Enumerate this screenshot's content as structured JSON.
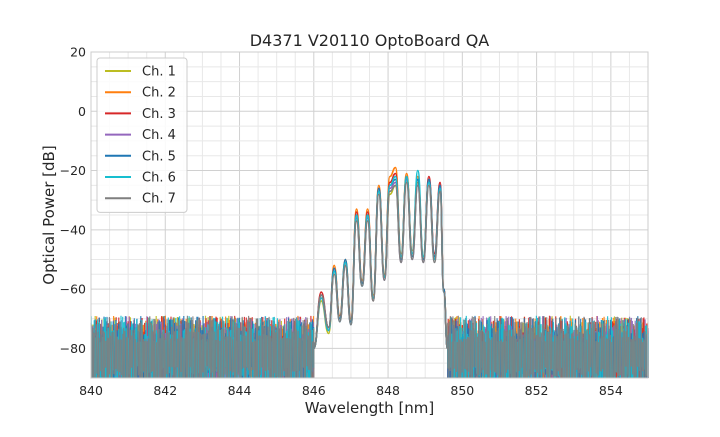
{
  "chart_data": {
    "type": "line",
    "title": "D4371 V20110 OptoBoard QA",
    "xlabel": "Wavelength [nm]",
    "ylabel": "Optical Power [dB]",
    "xlim": [
      840,
      855
    ],
    "ylim": [
      -90,
      20
    ],
    "xticks": [
      840,
      842,
      844,
      846,
      848,
      850,
      852,
      854
    ],
    "yticks": [
      20,
      0,
      -20,
      -40,
      -60,
      -80
    ],
    "ytick_labels": [
      "20",
      "0",
      "−20",
      "−40",
      "−60",
      "−80"
    ],
    "grid": true,
    "legend_position": "top-left",
    "noise_floor_db": -82,
    "series": [
      {
        "name": "Ch. 1",
        "color": "#bcbd22",
        "x": [
          846.0,
          846.2,
          846.4,
          846.55,
          846.7,
          846.85,
          847.0,
          847.15,
          847.3,
          847.45,
          847.6,
          847.75,
          847.9,
          848.05,
          848.2,
          848.35,
          848.5,
          848.65,
          848.8,
          848.95,
          849.1,
          849.25,
          849.4,
          849.5,
          849.6
        ],
        "y": [
          -80,
          -64,
          -75,
          -54,
          -70,
          -52,
          -71,
          -36,
          -58,
          -35,
          -64,
          -27,
          -56,
          -28,
          -25,
          -50,
          -23,
          -49,
          -24,
          -50,
          -23,
          -50,
          -26,
          -60,
          -80
        ]
      },
      {
        "name": "Ch. 2",
        "color": "#ff7f0e",
        "x": [
          846.0,
          846.2,
          846.4,
          846.55,
          846.7,
          846.85,
          847.0,
          847.15,
          847.3,
          847.45,
          847.6,
          847.75,
          847.9,
          848.05,
          848.2,
          848.35,
          848.5,
          848.65,
          848.8,
          848.95,
          849.1,
          849.25,
          849.4,
          849.5,
          849.6
        ],
        "y": [
          -80,
          -62,
          -74,
          -52,
          -69,
          -50,
          -70,
          -33,
          -57,
          -33,
          -62,
          -25,
          -55,
          -22,
          -19,
          -48,
          -21,
          -47,
          -22,
          -49,
          -23,
          -49,
          -25,
          -60,
          -80
        ]
      },
      {
        "name": "Ch. 3",
        "color": "#d62728",
        "x": [
          846.0,
          846.2,
          846.4,
          846.55,
          846.7,
          846.85,
          847.0,
          847.15,
          847.3,
          847.45,
          847.6,
          847.75,
          847.9,
          848.05,
          848.2,
          848.35,
          848.5,
          848.65,
          848.8,
          848.95,
          849.1,
          849.25,
          849.4,
          849.5,
          849.6
        ],
        "y": [
          -80,
          -61,
          -73,
          -53,
          -70,
          -51,
          -71,
          -34,
          -58,
          -34,
          -63,
          -26,
          -56,
          -24,
          -21,
          -49,
          -22,
          -48,
          -23,
          -50,
          -22,
          -48,
          -24,
          -60,
          -80
        ]
      },
      {
        "name": "Ch. 4",
        "color": "#9467bd",
        "x": [
          846.0,
          846.2,
          846.4,
          846.55,
          846.7,
          846.85,
          847.0,
          847.15,
          847.3,
          847.45,
          847.6,
          847.75,
          847.9,
          848.05,
          848.2,
          848.35,
          848.5,
          848.65,
          848.8,
          848.95,
          849.1,
          849.25,
          849.4,
          849.5,
          849.6
        ],
        "y": [
          -80,
          -63,
          -74,
          -54,
          -71,
          -52,
          -72,
          -36,
          -59,
          -36,
          -64,
          -27,
          -57,
          -26,
          -24,
          -51,
          -23,
          -50,
          -25,
          -51,
          -24,
          -50,
          -26,
          -61,
          -80
        ]
      },
      {
        "name": "Ch. 5",
        "color": "#1f77b4",
        "x": [
          846.0,
          846.2,
          846.4,
          846.55,
          846.7,
          846.85,
          847.0,
          847.15,
          847.3,
          847.45,
          847.6,
          847.75,
          847.9,
          848.05,
          848.2,
          848.35,
          848.5,
          848.65,
          848.8,
          848.95,
          849.1,
          849.25,
          849.4,
          849.5,
          849.6
        ],
        "y": [
          -80,
          -62,
          -73,
          -53,
          -70,
          -50,
          -71,
          -35,
          -58,
          -35,
          -63,
          -26,
          -56,
          -25,
          -23,
          -50,
          -22,
          -49,
          -23,
          -50,
          -23,
          -49,
          -25,
          -60,
          -80
        ]
      },
      {
        "name": "Ch. 6",
        "color": "#17becf",
        "x": [
          846.0,
          846.2,
          846.4,
          846.55,
          846.7,
          846.85,
          847.0,
          847.15,
          847.3,
          847.45,
          847.6,
          847.75,
          847.9,
          848.05,
          848.2,
          848.35,
          848.5,
          848.65,
          848.8,
          848.95,
          849.1,
          849.25,
          849.4,
          849.5,
          849.6
        ],
        "y": [
          -80,
          -63,
          -74,
          -54,
          -71,
          -51,
          -72,
          -35,
          -59,
          -35,
          -63,
          -27,
          -56,
          -25,
          -22,
          -49,
          -22,
          -48,
          -20,
          -49,
          -24,
          -50,
          -26,
          -61,
          -80
        ]
      },
      {
        "name": "Ch. 7",
        "color": "#7f7f7f",
        "x": [
          846.0,
          846.2,
          846.4,
          846.55,
          846.7,
          846.85,
          847.0,
          847.15,
          847.3,
          847.45,
          847.6,
          847.75,
          847.9,
          848.05,
          848.2,
          848.35,
          848.5,
          848.65,
          848.8,
          848.95,
          849.1,
          849.25,
          849.4,
          849.5,
          849.6
        ],
        "y": [
          -80,
          -62,
          -73,
          -55,
          -71,
          -52,
          -72,
          -37,
          -59,
          -37,
          -64,
          -28,
          -57,
          -27,
          -25,
          -51,
          -24,
          -50,
          -25,
          -51,
          -25,
          -51,
          -27,
          -61,
          -80
        ]
      }
    ]
  }
}
